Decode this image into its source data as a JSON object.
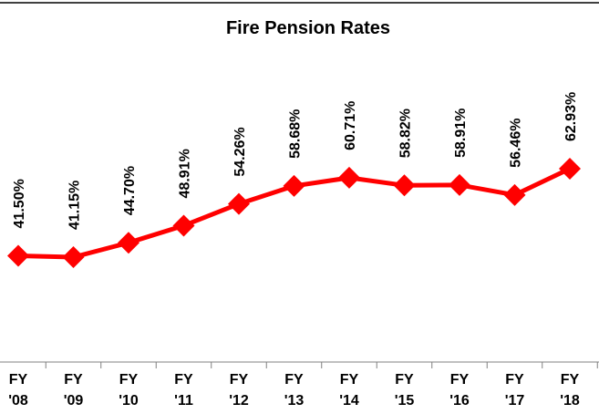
{
  "chart_data": {
    "type": "line",
    "title": "Fire Pension Rates",
    "categories": [
      "FY '08",
      "FY '09",
      "FY '10",
      "FY '11",
      "FY '12",
      "FY '13",
      "FY '14",
      "FY '15",
      "FY '16",
      "FY '17",
      "FY '18"
    ],
    "values": [
      41.5,
      41.15,
      44.7,
      48.91,
      54.26,
      58.68,
      60.71,
      58.82,
      58.91,
      56.46,
      62.93
    ],
    "value_labels": [
      "41.50%",
      "41.15%",
      "44.70%",
      "48.91%",
      "54.26%",
      "58.68%",
      "60.71%",
      "58.82%",
      "58.91%",
      "56.46%",
      "62.93%"
    ],
    "color": "#ff0000"
  }
}
